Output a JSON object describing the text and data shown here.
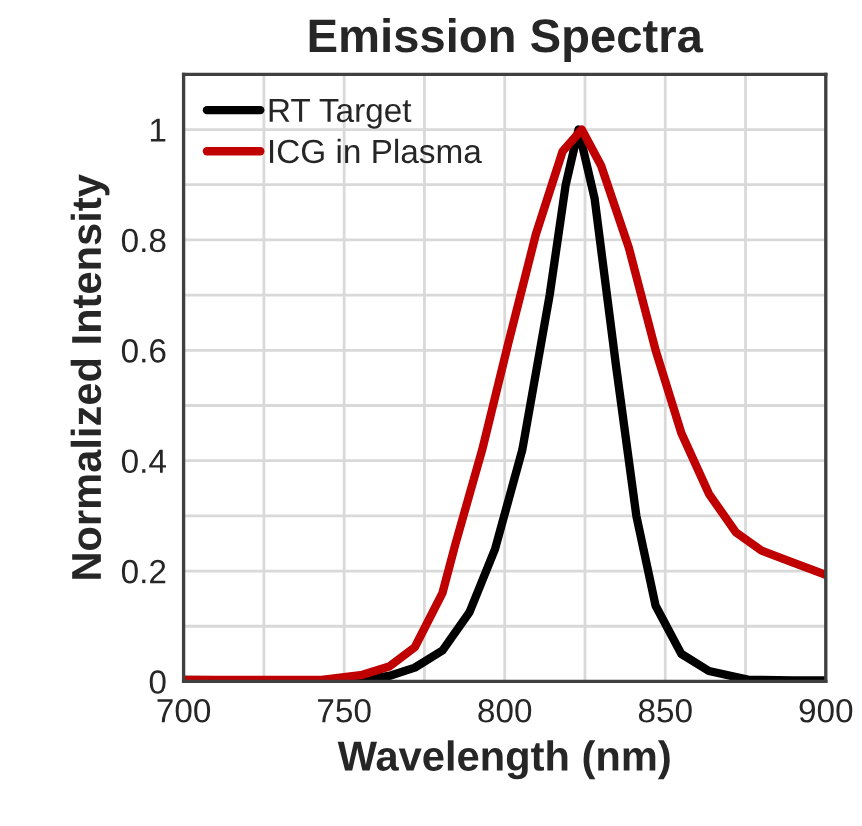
{
  "chart_data": {
    "type": "line",
    "title": "Emission Spectra",
    "xlabel": "Wavelength (nm)",
    "ylabel": "Normalized Intensity",
    "xlim": [
      700,
      900
    ],
    "ylim": [
      0,
      1.1
    ],
    "xticks": [
      700,
      {
        "value": 725,
        "label": null
      },
      750,
      {
        "value": 775,
        "label": null
      },
      800,
      {
        "value": 825,
        "label": null
      },
      850,
      {
        "value": 875,
        "label": null
      },
      900
    ],
    "yticks": [
      0,
      {
        "value": 0.1,
        "label": null
      },
      0.2,
      {
        "value": 0.3,
        "label": null
      },
      0.4,
      {
        "value": 0.5,
        "label": null
      },
      0.6,
      {
        "value": 0.7,
        "label": null
      },
      0.8,
      {
        "value": 0.9,
        "label": null
      },
      1
    ],
    "grid": true,
    "legend": "top left",
    "series": [
      {
        "name": "RT Target",
        "color": "#000000",
        "x": [
          700,
          720,
          740,
          751.5,
          764,
          772,
          780.6,
          789,
          797,
          805.5,
          814,
          819,
          823,
          828,
          834.6,
          841,
          847,
          855,
          863.6,
          876,
          890,
          900
        ],
        "values": [
          0.003,
          0.002,
          0.001,
          0.0,
          0.01,
          0.025,
          0.056,
          0.125,
          0.24,
          0.42,
          0.7,
          0.9,
          1.0,
          0.875,
          0.575,
          0.3,
          0.137,
          0.05,
          0.019,
          0.003,
          0.002,
          0.002
        ]
      },
      {
        "name": "ICG in Plasma",
        "color": "#c00000",
        "x": [
          700,
          720,
          743,
          755.7,
          764,
          772,
          780.6,
          784.7,
          793,
          801,
          809.7,
          818,
          824,
          830,
          838.7,
          847,
          855,
          863.6,
          872,
          880,
          888.6,
          900
        ],
        "values": [
          0.003,
          0.003,
          0.003,
          0.012,
          0.027,
          0.062,
          0.16,
          0.25,
          0.42,
          0.61,
          0.81,
          0.96,
          1.0,
          0.935,
          0.785,
          0.6,
          0.45,
          0.34,
          0.27,
          0.237,
          0.218,
          0.193
        ]
      }
    ]
  }
}
